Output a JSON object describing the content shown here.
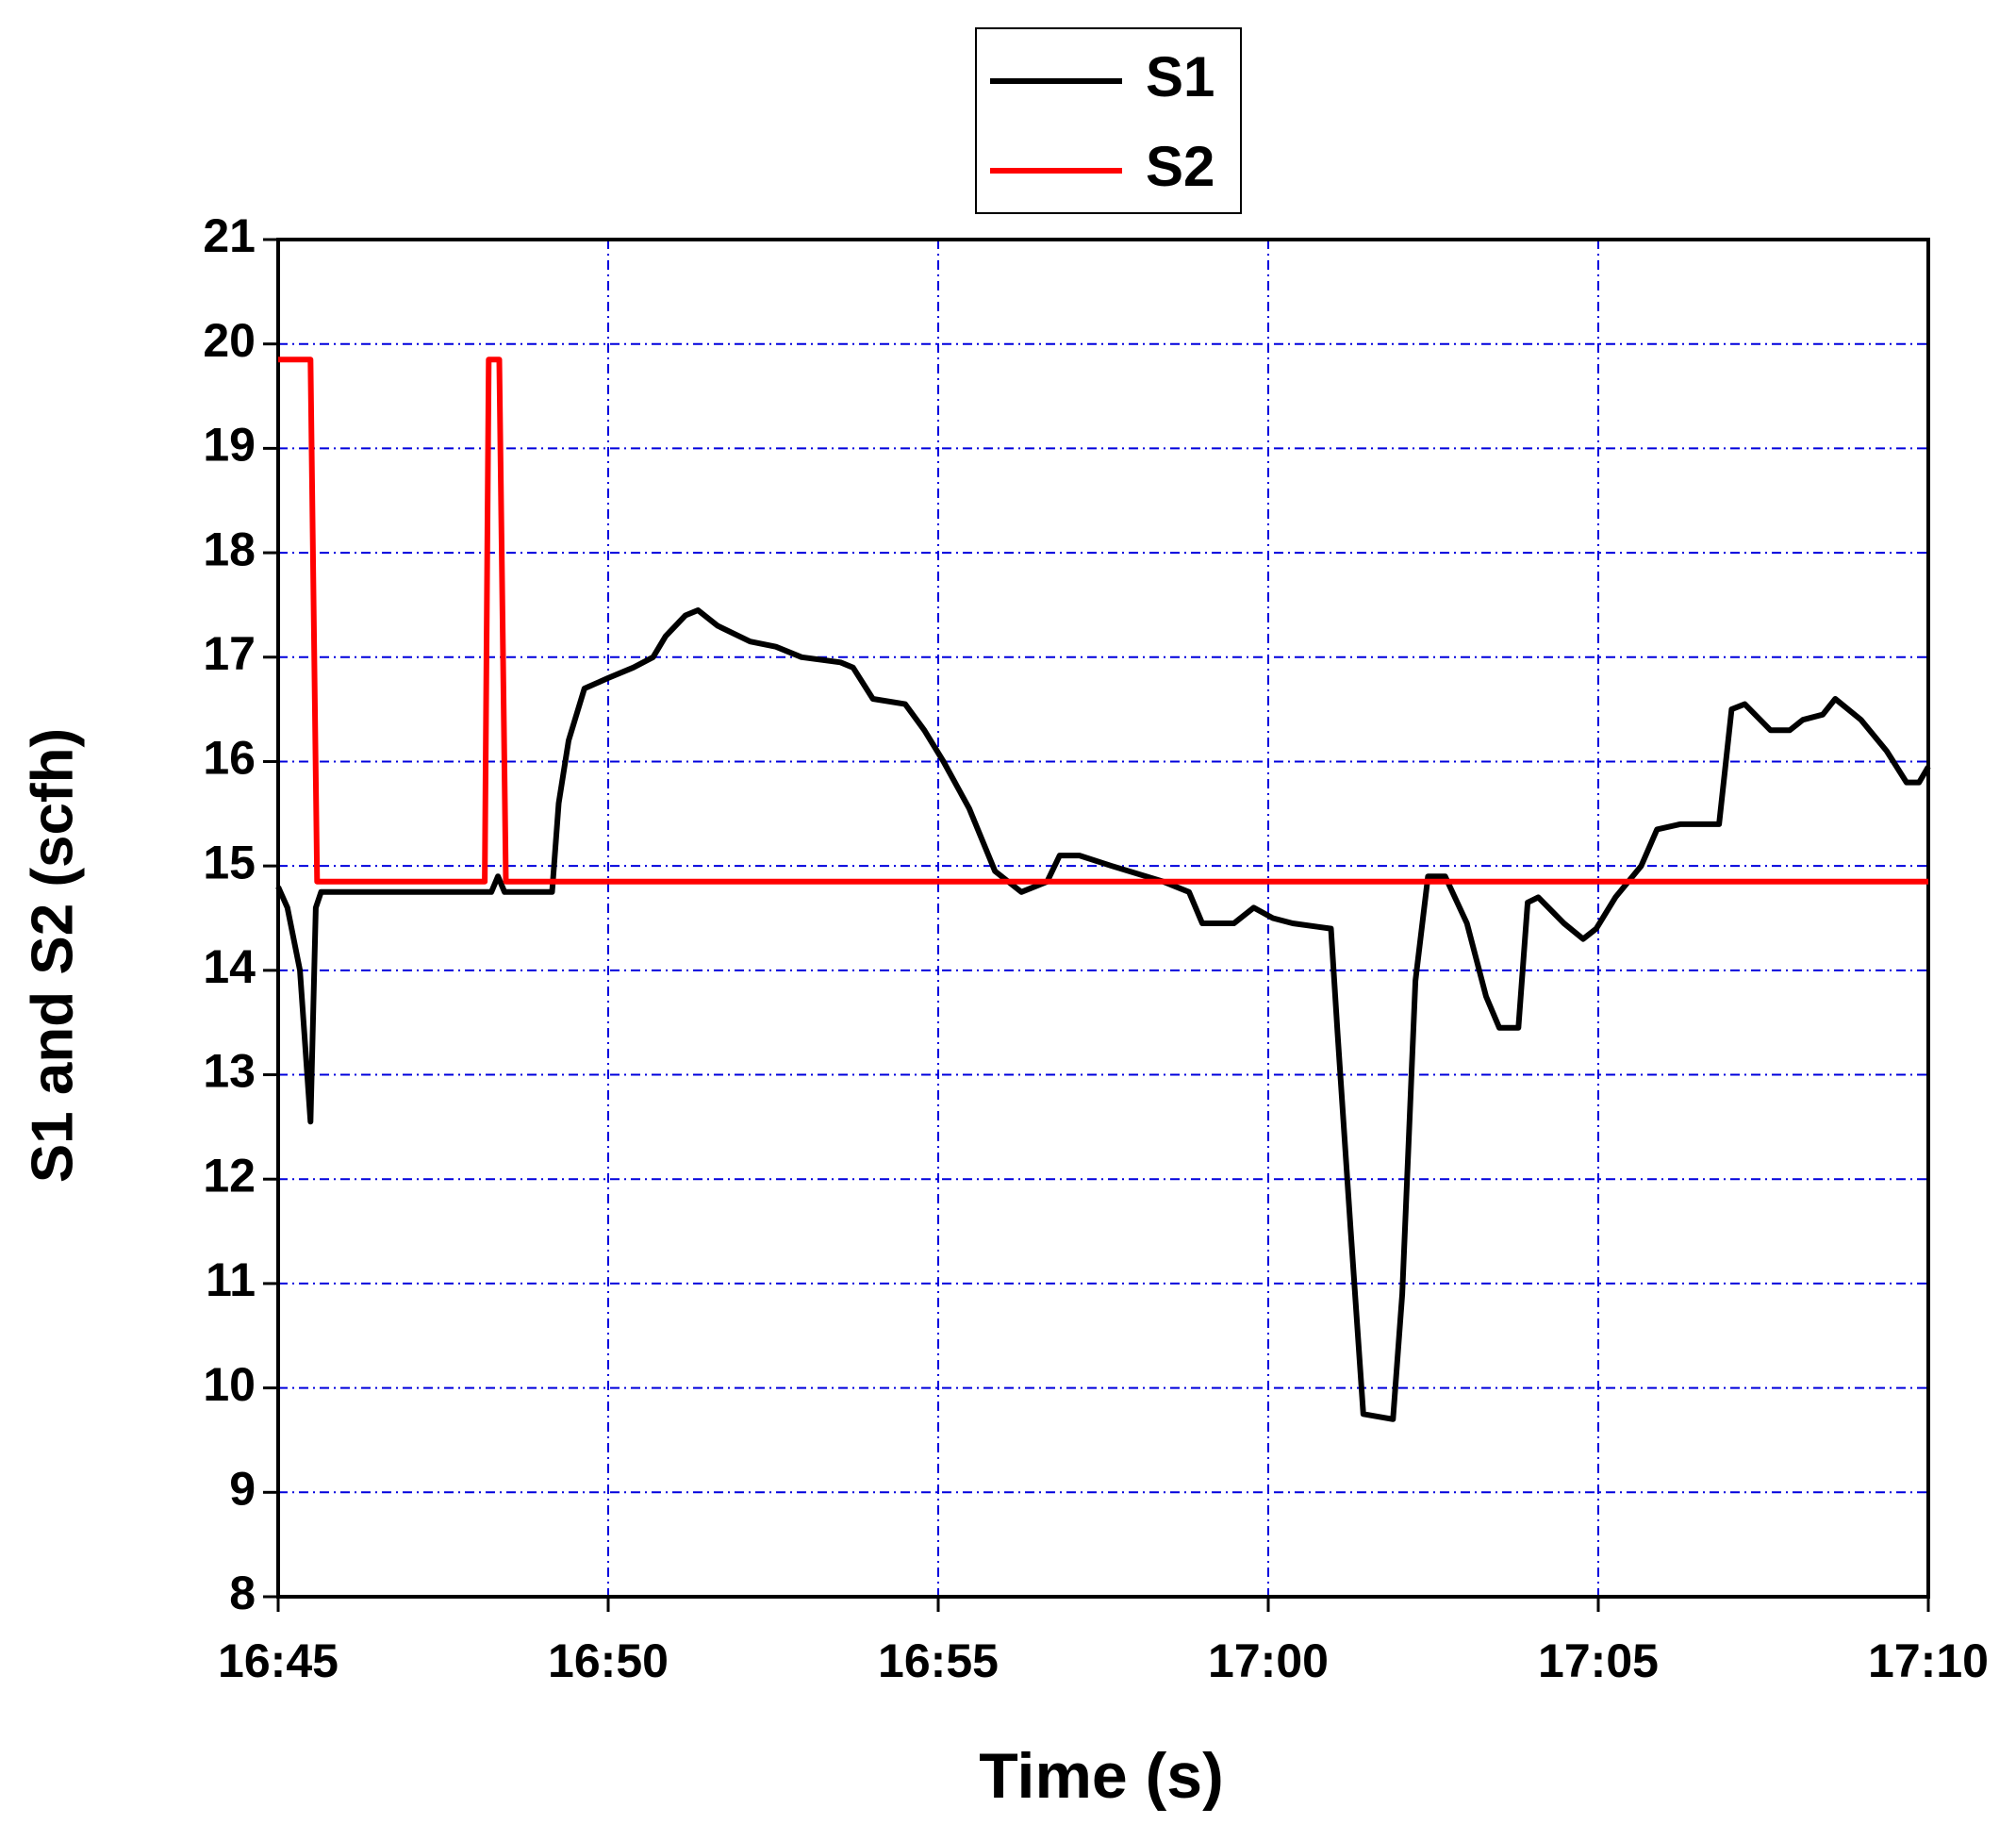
{
  "chart_data": {
    "type": "line",
    "x_label": "Time (s)",
    "y_label": "S1 and S2 (scfh)",
    "xlim": [
      1005,
      1030
    ],
    "xticks": [
      {
        "value": 1005,
        "label": "16:45"
      },
      {
        "value": 1010,
        "label": "16:50"
      },
      {
        "value": 1015,
        "label": "16:55"
      },
      {
        "value": 1020,
        "label": "17:00"
      },
      {
        "value": 1025,
        "label": "17:05"
      },
      {
        "value": 1030,
        "label": "17:10"
      }
    ],
    "ylim": [
      8,
      21
    ],
    "yticks": [
      8,
      9,
      10,
      11,
      12,
      13,
      14,
      15,
      16,
      17,
      18,
      19,
      20,
      21
    ],
    "grid": true,
    "grid_color": "#0000dd",
    "legend": "top",
    "series": [
      {
        "name": "S1",
        "color": "#000000",
        "x": [
          1005,
          1005.14,
          1005.33,
          1005.49,
          1005.57,
          1005.65,
          1006.66,
          1008.23,
          1008.33,
          1008.43,
          1009.15,
          1009.25,
          1009.4,
          1009.64,
          1010,
          1010.38,
          1010.68,
          1010.87,
          1011.17,
          1011.36,
          1011.66,
          1012.15,
          1012.54,
          1012.93,
          1013.52,
          1013.71,
          1014.01,
          1014.5,
          1014.79,
          1015.08,
          1015.47,
          1015.86,
          1016.26,
          1016.65,
          1016.84,
          1017.14,
          1017.63,
          1018.41,
          1018.8,
          1019,
          1019.48,
          1019.78,
          1020.07,
          1020.37,
          1020.95,
          1021.05,
          1021.25,
          1021.44,
          1021.89,
          1022.03,
          1022.23,
          1022.42,
          1022.68,
          1023.01,
          1023.3,
          1023.5,
          1023.79,
          1023.93,
          1024.09,
          1024.48,
          1024.77,
          1024.97,
          1025.26,
          1025.65,
          1025.89,
          1026.24,
          1026.83,
          1027.02,
          1027.22,
          1027.61,
          1027.9,
          1028.1,
          1028.4,
          1028.59,
          1028.98,
          1029.37,
          1029.67,
          1029.86,
          1030
        ],
        "values": [
          14.8,
          14.6,
          14.0,
          12.55,
          14.6,
          14.75,
          14.75,
          14.75,
          14.9,
          14.75,
          14.75,
          15.6,
          16.2,
          16.7,
          16.8,
          16.9,
          17.0,
          17.2,
          17.4,
          17.45,
          17.3,
          17.15,
          17.1,
          17.0,
          16.95,
          16.9,
          16.6,
          16.55,
          16.3,
          16.0,
          15.55,
          14.95,
          14.75,
          14.85,
          15.1,
          15.1,
          15.0,
          14.85,
          14.75,
          14.45,
          14.45,
          14.6,
          14.5,
          14.45,
          14.4,
          13.4,
          11.5,
          9.75,
          9.7,
          10.9,
          13.9,
          14.9,
          14.9,
          14.45,
          13.75,
          13.45,
          13.45,
          14.65,
          14.7,
          14.45,
          14.3,
          14.4,
          14.7,
          15.0,
          15.35,
          15.4,
          15.4,
          16.5,
          16.55,
          16.3,
          16.3,
          16.4,
          16.45,
          16.6,
          16.4,
          16.1,
          15.8,
          15.8,
          15.95
        ]
      },
      {
        "name": "S2",
        "color": "#ff0000",
        "x": [
          1005,
          1005.49,
          1005.59,
          1008.13,
          1008.19,
          1008.35,
          1008.45,
          1030
        ],
        "values": [
          19.85,
          19.85,
          14.85,
          14.85,
          19.85,
          19.85,
          14.85,
          14.85
        ]
      }
    ]
  }
}
